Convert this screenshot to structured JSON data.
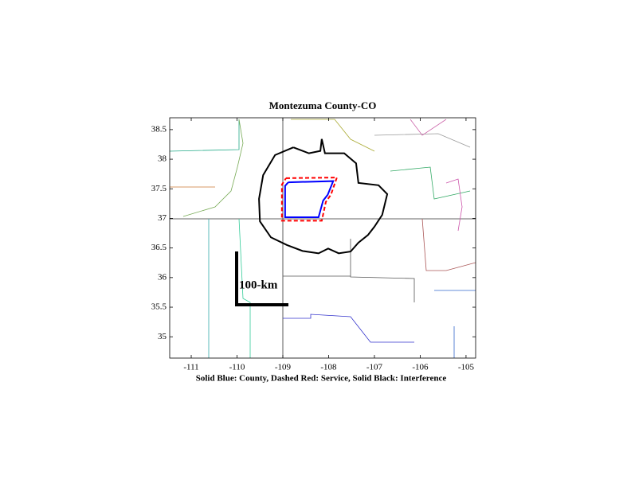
{
  "chart_data": {
    "type": "line",
    "title": "Montezuma County-CO",
    "xlabel": "Solid Blue: County, Dashed Red: Service, Solid Black: Interference",
    "annotation": "100-km",
    "xlim": [
      -111.47,
      -104.79
    ],
    "ylim": [
      34.64,
      38.7
    ],
    "xticks": [
      -111,
      -110,
      -109,
      -108,
      -107,
      -106,
      -105
    ],
    "yticks": [
      35,
      35.5,
      36,
      36.5,
      37,
      37.5,
      38,
      38.5
    ],
    "grid": false,
    "series": [
      {
        "color": "#0000ff",
        "linestyle": "solid",
        "x": [
          -108.88,
          -107.9,
          -108.02,
          -108.12,
          -108.22,
          -108.95,
          -108.95,
          -108.88
        ],
        "y": [
          37.61,
          37.63,
          37.4,
          37.3,
          37.02,
          37.02,
          37.55,
          37.61
        ]
      },
      {
        "color": "#ff0000",
        "linestyle": "dashed",
        "x": [
          -108.93,
          -107.82,
          -107.95,
          -108.06,
          -108.15,
          -109.02,
          -109.02,
          -108.93
        ],
        "y": [
          37.68,
          37.69,
          37.4,
          37.28,
          36.96,
          36.96,
          37.57,
          37.68
        ]
      },
      {
        "color": "#000000",
        "linestyle": "solid",
        "x": [
          -108.77,
          -108.43,
          -108.18,
          -108.15,
          -108.08,
          -107.66,
          -107.4,
          -107.35,
          -106.91,
          -106.72,
          -106.83,
          -107.0,
          -107.14,
          -107.35,
          -107.52,
          -107.78,
          -108.01,
          -108.22,
          -108.57,
          -108.91,
          -109.26,
          -109.5,
          -109.52,
          -109.43,
          -109.17,
          -108.77
        ],
        "y": [
          38.2,
          38.1,
          38.14,
          38.34,
          38.1,
          38.1,
          37.93,
          37.6,
          37.56,
          37.41,
          37.06,
          36.86,
          36.72,
          36.59,
          36.44,
          36.41,
          36.49,
          36.41,
          36.45,
          36.55,
          36.68,
          36.95,
          37.33,
          37.73,
          38.07,
          38.2
        ]
      }
    ]
  }
}
